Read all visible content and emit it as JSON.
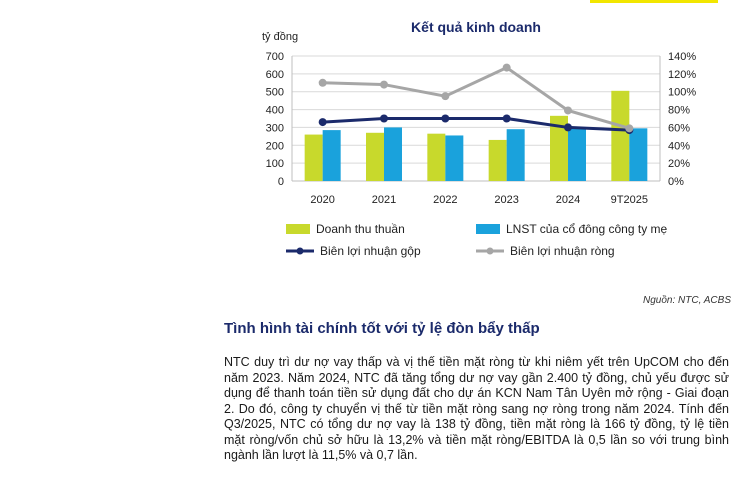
{
  "accent_color": "#f2e600",
  "chart_data": {
    "type": "bar",
    "title": "Kết quả kinh doanh",
    "left_axis_label": "tỷ đồng",
    "categories": [
      "2020",
      "2021",
      "2022",
      "2023",
      "2024",
      "9T2025"
    ],
    "left_ticks": [
      "0",
      "100",
      "200",
      "300",
      "400",
      "500",
      "600",
      "700"
    ],
    "right_ticks": [
      "0%",
      "20%",
      "40%",
      "60%",
      "80%",
      "100%",
      "120%",
      "140%"
    ],
    "ylim_left": [
      0,
      700
    ],
    "ylim_right": [
      0,
      140
    ],
    "grid": true,
    "series": [
      {
        "name": "Doanh thu thuần",
        "type": "bar",
        "axis": "left",
        "color": "#c8d92c",
        "values": [
          260,
          270,
          265,
          230,
          365,
          505
        ]
      },
      {
        "name": "LNST của cổ đông công ty mẹ",
        "type": "bar",
        "axis": "left",
        "color": "#1aa2dc",
        "values": [
          285,
          300,
          255,
          290,
          295,
          295
        ]
      },
      {
        "name": "Biên lợi nhuận gộp",
        "type": "line",
        "axis": "right",
        "color": "#1b2a6b",
        "values": [
          66,
          70,
          70,
          70,
          60,
          57
        ]
      },
      {
        "name": "Biên lợi nhuận ròng",
        "type": "line",
        "axis": "right",
        "color": "#a6a6a6",
        "values": [
          110,
          108,
          95,
          127,
          79,
          59
        ]
      }
    ]
  },
  "source_note": "Nguồn: NTC, ACBS",
  "section_heading": "Tình hình tài chính tốt với tỷ lệ đòn bẩy thấp",
  "paragraph": "NTC duy trì dư nợ vay thấp và vị thế tiền mặt ròng từ khi niêm yết trên UpCOM cho đến năm 2023. Năm 2024, NTC đã tăng tổng dư nợ vay gần 2.400 tỷ đồng, chủ yếu được sử dụng để thanh toán tiền sử dụng đất cho dự án KCN Nam Tân Uyên mở rộng - Giai đoạn 2. Do đó, công ty chuyển vị thế từ tiền mặt ròng sang nợ ròng trong năm 2024. Tính đến Q3/2025, NTC có tổng dư nợ vay là 138 tỷ đồng, tiền mặt ròng là 166 tỷ đồng, tỷ lệ tiền mặt ròng/vốn chủ sở hữu là 13,2% và tiền mặt ròng/EBITDA là 0,5 lần so với trung bình ngành lần lượt là 11,5% và 0,7 lần."
}
